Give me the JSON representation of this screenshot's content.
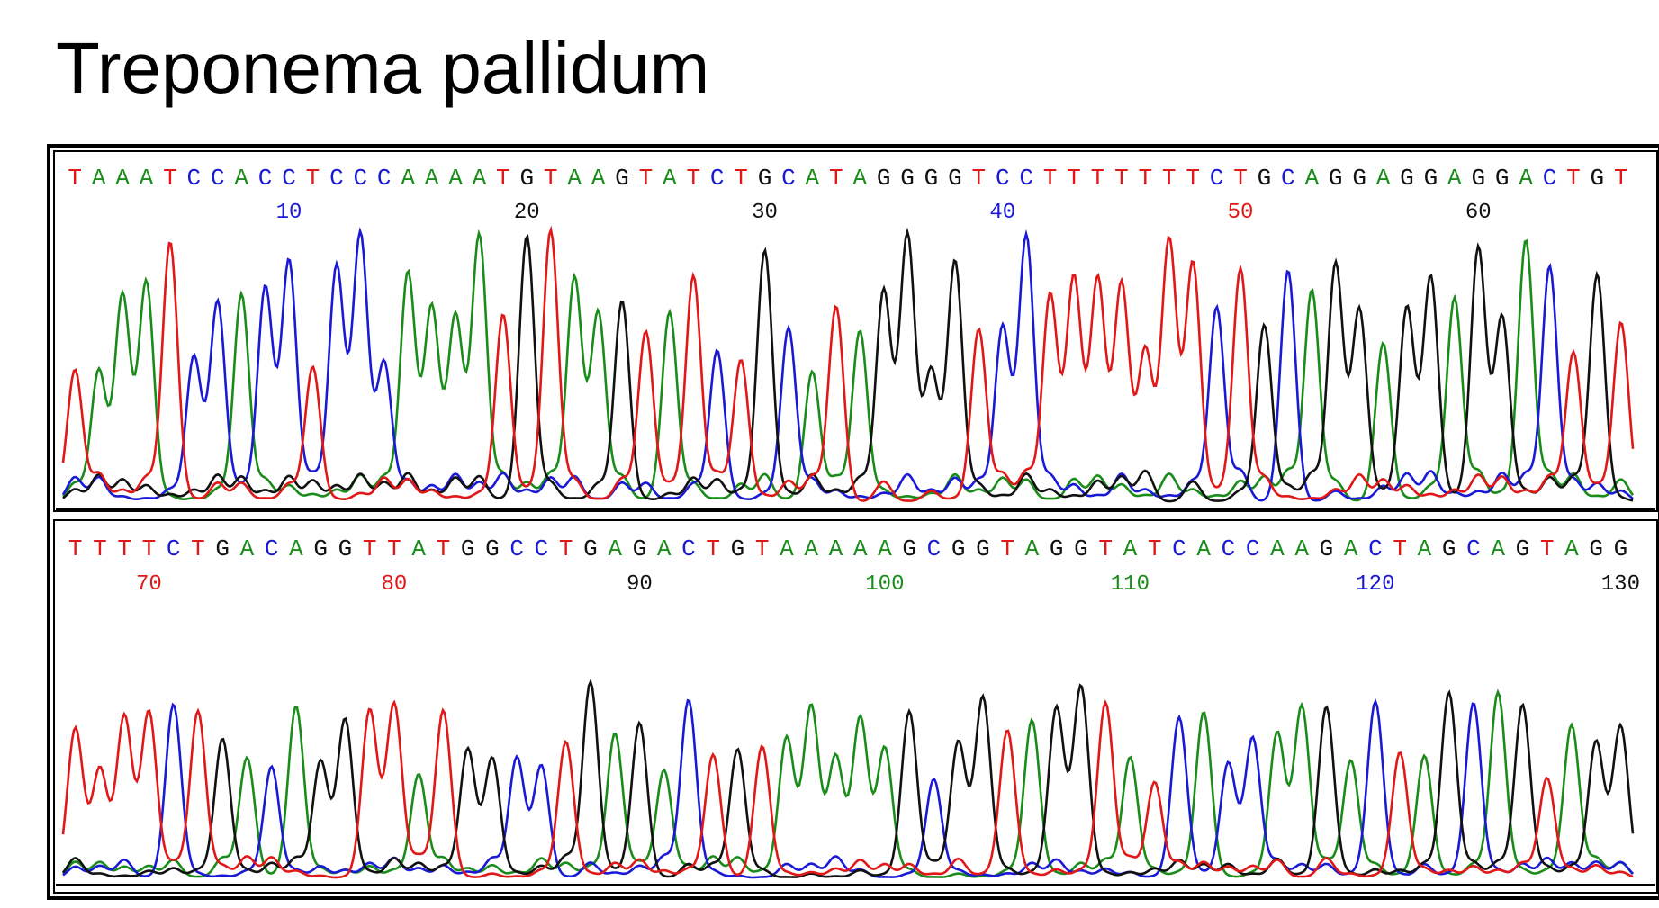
{
  "title": "Treponema pallidum",
  "colors": {
    "A": "#1a8c1a",
    "C": "#1a1ad6",
    "G": "#111111",
    "T": "#e01818"
  },
  "chart_data": [
    {
      "type": "line",
      "panel": "top",
      "description_bases": "TAAATCCACCTCCCAAAATGTAAGTATCTGCATAGGGGTCCTTTTTTTCTGCAGGAGGAGGACTGT",
      "bases": "TAAATCCACCTCCCAAAATGTAAGTATCTGCATAGGGGTCCTTTTTTTCTGCAGGAGGAGGACTGT",
      "position_labels": [
        {
          "label": "10",
          "color": "#1a1ad6"
        },
        {
          "label": "20",
          "color": "#111111"
        },
        {
          "label": "30",
          "color": "#111111"
        },
        {
          "label": "40",
          "color": "#1a1ad6"
        },
        {
          "label": "50",
          "color": "#e01818"
        },
        {
          "label": "60",
          "color": "#111111"
        }
      ],
      "first_position": 1
    },
    {
      "type": "line",
      "panel": "bottom",
      "bases": "TTTTCTGACAGGTTATGGCCTGAGACTGTAAAAAGCGGTAGGTATCACCAAGACTAGCAGTAGG",
      "position_labels": [
        {
          "label": "70",
          "color": "#e01818"
        },
        {
          "label": "80",
          "color": "#e01818"
        },
        {
          "label": "90",
          "color": "#111111"
        },
        {
          "label": "100",
          "color": "#1a8c1a"
        },
        {
          "label": "110",
          "color": "#1a8c1a"
        },
        {
          "label": "120",
          "color": "#1a1ad6"
        },
        {
          "label": "130",
          "color": "#111111"
        }
      ],
      "first_position": 67
    }
  ]
}
